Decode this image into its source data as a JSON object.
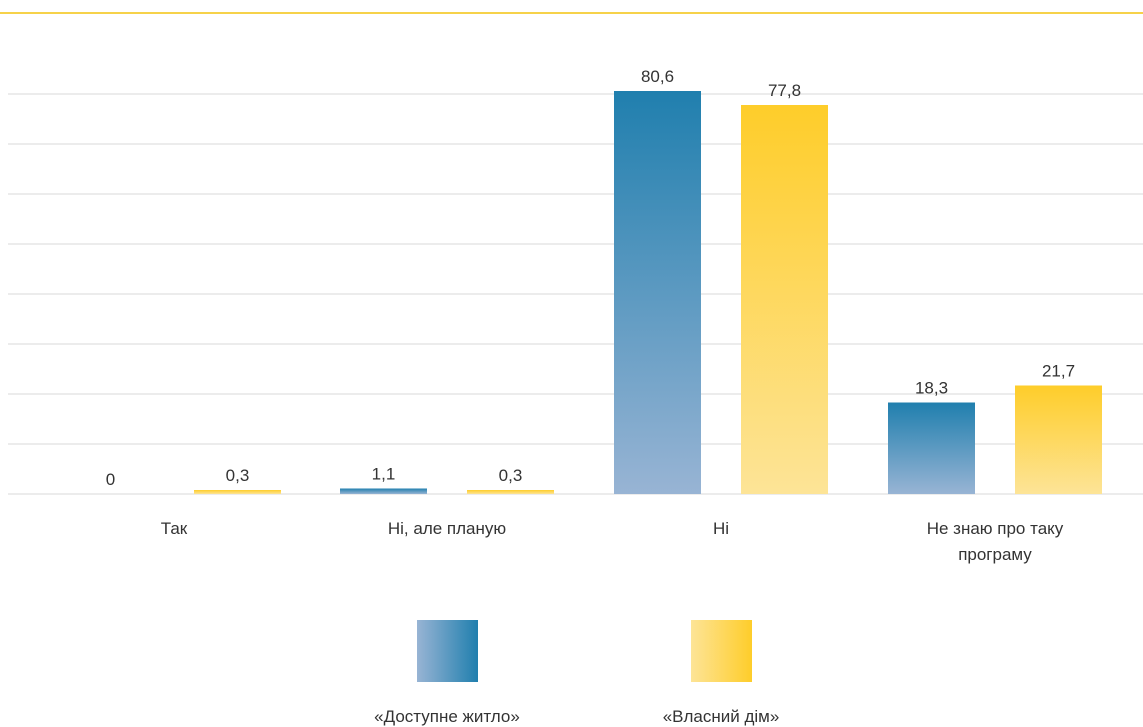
{
  "chart_data": {
    "type": "bar",
    "title": "",
    "xlabel": "",
    "ylabel": "",
    "ylim": [
      0,
      80
    ],
    "gridlines": true,
    "legend_position": "bottom",
    "categories": [
      [
        "Так"
      ],
      [
        "Ні, але планую"
      ],
      [
        "Ні"
      ],
      [
        "Не знаю про таку",
        "програму"
      ]
    ],
    "series": [
      {
        "name": "«Доступне житло»",
        "values": [
          0,
          1.1,
          80.6,
          18.3
        ],
        "labels": [
          "0",
          "1,1",
          "80,6",
          "18,3"
        ],
        "color_top": "#207fae",
        "color_bottom": "#98b4d4"
      },
      {
        "name": "«Власний дім»",
        "values": [
          0.3,
          0.3,
          77.8,
          21.7
        ],
        "labels": [
          "0,3",
          "0,3",
          "77,8",
          "21,7"
        ],
        "color_top": "#fecd2a",
        "color_bottom": "#fde497"
      }
    ]
  },
  "legend": {
    "items": [
      {
        "label": "«Доступне житло»",
        "color": "#207fae"
      },
      {
        "label": "«Власний дім»",
        "color": "#fecd2a"
      }
    ]
  },
  "colors": {
    "top_rule": "#f6d24a",
    "grid": "#d8d8d8",
    "text": "#333333"
  }
}
